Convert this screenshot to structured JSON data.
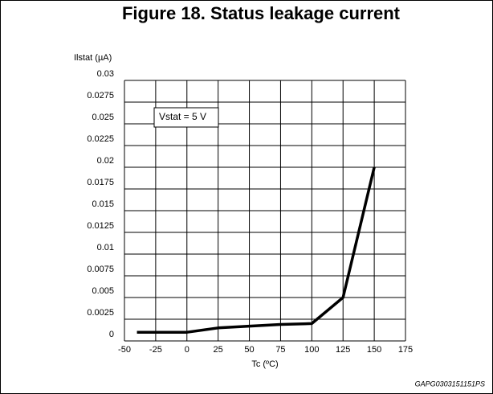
{
  "chart_data": {
    "type": "line",
    "title": "Figure 18. Status leakage current",
    "y_label": "Ilstat (µA)",
    "x_label": "Tc (ºC)",
    "annotation": "Vstat = 5 V",
    "footer": "GAPG0303151151PS",
    "x": [
      -40,
      0,
      25,
      50,
      75,
      100,
      125,
      150
    ],
    "values": [
      0.001,
      0.001,
      0.0015,
      0.0017,
      0.0019,
      0.002,
      0.005,
      0.02
    ],
    "color": "#000000",
    "xlim": [
      -50,
      175
    ],
    "xticks": [
      -50,
      -25,
      0,
      25,
      50,
      75,
      100,
      125,
      150,
      175
    ],
    "ylim": [
      0,
      0.03
    ],
    "yticks": [
      0,
      0.0025,
      0.005,
      0.0075,
      0.01,
      0.0125,
      0.015,
      0.0175,
      0.02,
      0.0225,
      0.025,
      0.0275,
      0.03
    ],
    "grid": true
  }
}
